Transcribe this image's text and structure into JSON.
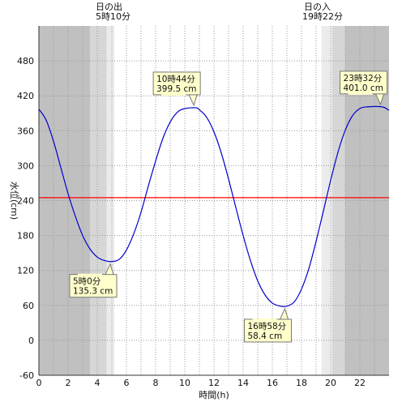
{
  "sunrise": {
    "label": "日の出",
    "time": "5時10分"
  },
  "sunset": {
    "label": "日の入",
    "time": "19時22分"
  },
  "chart_data": {
    "type": "line",
    "xlabel": "時間(h)",
    "ylabel": "水位(cm)",
    "xlim": [
      0,
      24
    ],
    "ylim": [
      -60,
      540
    ],
    "x_ticks": [
      0,
      2,
      4,
      6,
      8,
      10,
      12,
      14,
      16,
      18,
      20,
      22
    ],
    "y_ticks": [
      -60,
      0,
      60,
      120,
      180,
      240,
      300,
      360,
      420,
      480
    ],
    "grid": true,
    "reference_line": {
      "value": 245,
      "color": "#ff0000"
    },
    "shading": {
      "night": [
        [
          0,
          3.5
        ],
        [
          21,
          24
        ]
      ],
      "twilight": [
        [
          3.5,
          4.65
        ],
        [
          20.1,
          21
        ]
      ],
      "dawn_dusk": [
        [
          4.65,
          5.17
        ],
        [
          19.37,
          20.1
        ]
      ]
    },
    "series": [
      {
        "color": "#0000cc",
        "points": [
          [
            0,
            397
          ],
          [
            0.5,
            378
          ],
          [
            1,
            342
          ],
          [
            1.5,
            297
          ],
          [
            2,
            252
          ],
          [
            2.5,
            213
          ],
          [
            3,
            180
          ],
          [
            3.5,
            157
          ],
          [
            4,
            143
          ],
          [
            4.5,
            137
          ],
          [
            5,
            135.3
          ],
          [
            5.5,
            139
          ],
          [
            6,
            155
          ],
          [
            6.5,
            183
          ],
          [
            7,
            220
          ],
          [
            7.5,
            265
          ],
          [
            8,
            308
          ],
          [
            8.5,
            347
          ],
          [
            9,
            375
          ],
          [
            9.5,
            392
          ],
          [
            10,
            398
          ],
          [
            10.73,
            399.5
          ],
          [
            11,
            396
          ],
          [
            11.5,
            383
          ],
          [
            12,
            358
          ],
          [
            12.5,
            322
          ],
          [
            13,
            277
          ],
          [
            13.5,
            228
          ],
          [
            14,
            180
          ],
          [
            14.5,
            137
          ],
          [
            15,
            102
          ],
          [
            15.5,
            78
          ],
          [
            16,
            64
          ],
          [
            16.5,
            59
          ],
          [
            16.97,
            58.4
          ],
          [
            17.5,
            66
          ],
          [
            18,
            88
          ],
          [
            18.5,
            123
          ],
          [
            19,
            170
          ],
          [
            19.5,
            222
          ],
          [
            20,
            275
          ],
          [
            20.5,
            323
          ],
          [
            21,
            361
          ],
          [
            21.5,
            386
          ],
          [
            22,
            398
          ],
          [
            22.5,
            401
          ],
          [
            23.53,
            401.0
          ],
          [
            24,
            395
          ]
        ]
      }
    ],
    "annotations": [
      {
        "time": "5時0分",
        "value": "135.3 cm",
        "x": 5.0,
        "y": 135.3,
        "side": "below"
      },
      {
        "time": "10時44分",
        "value": "399.5 cm",
        "x": 10.73,
        "y": 399.5,
        "side": "above"
      },
      {
        "time": "16時58分",
        "value": "58.4 cm",
        "x": 16.97,
        "y": 58.4,
        "side": "below"
      },
      {
        "time": "23時32分",
        "value": "401.0 cm",
        "x": 23.53,
        "y": 401.0,
        "side": "above"
      }
    ]
  }
}
